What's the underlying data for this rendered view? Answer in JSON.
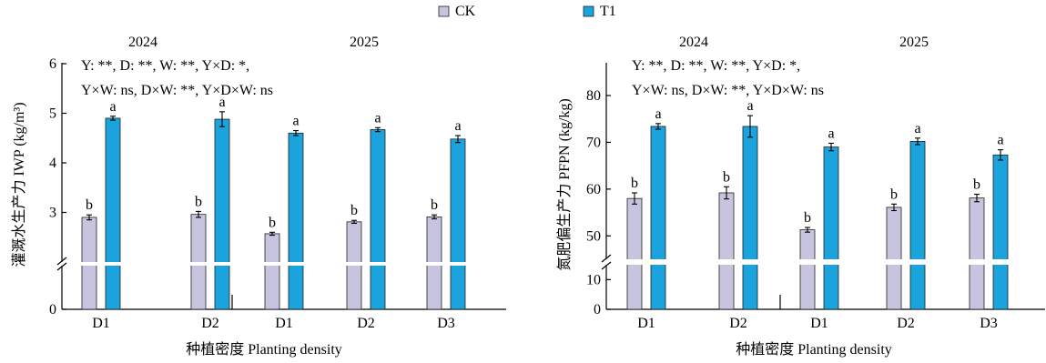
{
  "legend": {
    "items": [
      {
        "label": "CK",
        "color": "#c6c4df"
      },
      {
        "label": "T1",
        "color": "#1aa3dc"
      }
    ]
  },
  "chart_data": [
    {
      "type": "bar",
      "ylabel": "灌溉水生产力 IWP (kg/m³)",
      "xlabel": "种植密度 Planting density",
      "year_labels": [
        "2024",
        "2025"
      ],
      "categories": [
        "D1",
        "D2",
        "D1",
        "D2",
        "D3"
      ],
      "yticks": [
        0,
        3,
        4,
        5,
        6
      ],
      "ylim_upper": [
        2.0,
        6.0
      ],
      "axis_break": true,
      "annotation": [
        "Y: **, D: **, W: **, Y×D: *,",
        "Y×W: ns, D×W: **, Y×D×W: ns"
      ],
      "series": [
        {
          "name": "CK",
          "values": [
            2.9,
            2.96,
            2.57,
            2.81,
            2.91
          ],
          "errors": [
            0.05,
            0.06,
            0.03,
            0.03,
            0.04
          ],
          "letters": [
            "b",
            "b",
            "b",
            "b",
            "b"
          ]
        },
        {
          "name": "T1",
          "values": [
            4.9,
            4.88,
            4.6,
            4.67,
            4.48
          ],
          "errors": [
            0.04,
            0.15,
            0.05,
            0.04,
            0.07
          ],
          "letters": [
            "a",
            "a",
            "a",
            "a",
            "a"
          ]
        }
      ]
    },
    {
      "type": "bar",
      "ylabel": "氮肥偏生产力 PFPN (kg/kg)",
      "xlabel": "种植密度 Planting density",
      "year_labels": [
        "2024",
        "2025"
      ],
      "categories": [
        "D1",
        "D2",
        "D1",
        "D2",
        "D3"
      ],
      "yticks": [
        0,
        10,
        50,
        60,
        70,
        80
      ],
      "ylim_lower": [
        0,
        15
      ],
      "ylim_upper": [
        45,
        87
      ],
      "axis_break": true,
      "annotation": [
        "Y: **, D: **, W: **, Y×D: *,",
        "Y×W: ns, D×W: **, Y×D×W: ns"
      ],
      "series": [
        {
          "name": "CK",
          "values": [
            58.0,
            59.2,
            51.3,
            56.1,
            58.1
          ],
          "errors": [
            1.2,
            1.3,
            0.5,
            0.7,
            0.8
          ],
          "letters": [
            "b",
            "b",
            "b",
            "b",
            "b"
          ]
        },
        {
          "name": "T1",
          "values": [
            73.4,
            73.4,
            69.0,
            70.2,
            67.3
          ],
          "errors": [
            0.6,
            2.3,
            0.8,
            0.7,
            1.1
          ],
          "letters": [
            "a",
            "a",
            "a",
            "a",
            "a"
          ]
        }
      ]
    }
  ]
}
